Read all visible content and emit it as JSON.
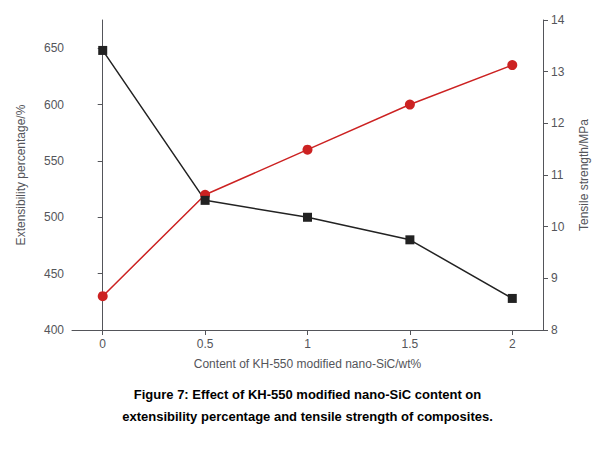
{
  "chart_data": {
    "type": "line",
    "xlabel": "Content of KH-550 modified nano-SiC/wt%",
    "ylabel": "Extensibility percentage/%",
    "y2label": "Tensile strength/MPa",
    "x": [
      0.0,
      0.5,
      1.0,
      1.5,
      2.0
    ],
    "series": [
      {
        "color": "#cc2222",
        "marker": "circle",
        "values": [
          430,
          520,
          560,
          600,
          635
        ]
      },
      {
        "color": "#222222",
        "marker": "square",
        "values": [
          648,
          515,
          500,
          480,
          428
        ]
      }
    ],
    "xlim": [
      -0.15,
      2.15
    ],
    "xticks": [
      0,
      0.5,
      1,
      1.5,
      2
    ],
    "ylim": [
      400,
      675
    ],
    "yticks": [
      400,
      450,
      500,
      550,
      600,
      650
    ],
    "y2lim": [
      8,
      14
    ],
    "y2ticks": [
      8,
      9,
      10,
      11,
      12,
      13,
      14
    ],
    "grid": false,
    "annotations": [
      "Figure 7: Effect of KH-550 modified nano-SiC content on",
      "extensibility percentage and tensile strength of composites."
    ]
  }
}
